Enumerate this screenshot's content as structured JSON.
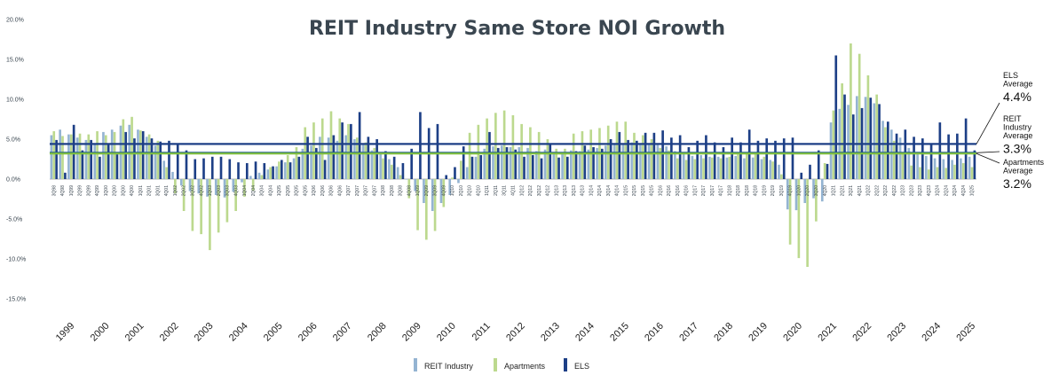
{
  "title": "REIT Industry Same Store NOI Growth",
  "colors": {
    "reit": "#94b4d2",
    "apartments": "#bcd98e",
    "els": "#1d3f86",
    "gridline": "#d8d8d8"
  },
  "legend": [
    "REIT Industry",
    "Apartments",
    "ELS"
  ],
  "annotations": [
    {
      "label_lines": [
        "ELS",
        "Average"
      ],
      "value": "4.4%",
      "level": 4.4,
      "color": "#1d3f86"
    },
    {
      "label_lines": [
        "REIT",
        "Industry",
        "Average"
      ],
      "value": "3.3%",
      "level": 3.3,
      "color": "#1f5b8c"
    },
    {
      "label_lines": [
        "Apartments",
        "Average"
      ],
      "value": "3.2%",
      "level": 3.2,
      "color": "#7fbf3f"
    }
  ],
  "chart_data": {
    "type": "bar",
    "title": "REIT Industry Same Store NOI Growth",
    "xlabel": "",
    "ylabel": "",
    "ylim": [
      -15,
      20
    ],
    "yticks": [
      "20.0%",
      "15.0%",
      "10.0%",
      "5.0%",
      "0.0%",
      "-5.0%",
      "-10.0%",
      "-15.0%"
    ],
    "ytick_values": [
      20,
      15,
      10,
      5,
      0,
      -5,
      -10,
      -15
    ],
    "categories": [
      "3Q98",
      "4Q98",
      "1Q99",
      "2Q99",
      "3Q99",
      "4Q99",
      "1Q00",
      "2Q00",
      "3Q00",
      "4Q00",
      "1Q01",
      "2Q01",
      "3Q01",
      "4Q01",
      "1Q02",
      "2Q02",
      "3Q02",
      "4Q02",
      "1Q03",
      "2Q03",
      "3Q03",
      "4Q03",
      "1Q04",
      "2Q04",
      "3Q04",
      "4Q04",
      "1Q05",
      "2Q05",
      "3Q05",
      "4Q05",
      "1Q06",
      "2Q06",
      "3Q06",
      "4Q06",
      "1Q07",
      "2Q07",
      "3Q07",
      "4Q07",
      "1Q08",
      "2Q08",
      "3Q08",
      "4Q08",
      "1Q09",
      "2Q09",
      "3Q09",
      "4Q09",
      "1Q10",
      "2Q10",
      "3Q10",
      "4Q10",
      "1Q11",
      "2Q11",
      "3Q11",
      "4Q11",
      "1Q12",
      "2Q12",
      "3Q12",
      "4Q12",
      "1Q13",
      "2Q13",
      "3Q13",
      "4Q13",
      "1Q14",
      "2Q14",
      "3Q14",
      "4Q14",
      "1Q15",
      "2Q15",
      "3Q15",
      "4Q15",
      "1Q16",
      "2Q16",
      "3Q16",
      "4Q16",
      "1Q17",
      "2Q17",
      "3Q17",
      "4Q17",
      "1Q18",
      "2Q18",
      "3Q18",
      "4Q18",
      "1Q19",
      "2Q19",
      "3Q19",
      "4Q19",
      "1Q20",
      "2Q20",
      "3Q20",
      "4Q20",
      "1Q21",
      "2Q21",
      "3Q21",
      "4Q21",
      "1Q22",
      "2Q22",
      "3Q22",
      "4Q22",
      "1Q23",
      "2Q23",
      "3Q23",
      "4Q23",
      "1Q24",
      "2Q24",
      "3Q24",
      "4Q24",
      "1Q25"
    ],
    "years": [
      "1999",
      "2000",
      "2001",
      "2002",
      "2003",
      "2004",
      "2005",
      "2006",
      "2007",
      "2008",
      "2009",
      "2010",
      "2011",
      "2012",
      "2013",
      "2014",
      "2015",
      "2016",
      "2017",
      "2018",
      "2019",
      "2020",
      "2021",
      "2022",
      "2023",
      "2024",
      "2025"
    ],
    "series": [
      {
        "name": "REIT Industry",
        "values": [
          5.5,
          6.2,
          5.6,
          5.2,
          4.9,
          4.3,
          5.9,
          6.2,
          6.7,
          6.8,
          6.2,
          5.3,
          4.2,
          2.3,
          0.9,
          -0.8,
          -1.5,
          -1.8,
          -2.2,
          -2.0,
          -2.3,
          -1.6,
          -0.4,
          0.4,
          0.8,
          1.2,
          1.6,
          2.1,
          2.6,
          3.8,
          4.2,
          5.3,
          5.2,
          4.8,
          5.5,
          5.0,
          4.4,
          3.6,
          3.2,
          2.5,
          1.5,
          0.0,
          -1.5,
          -3.0,
          -4.0,
          -3.0,
          -2.0,
          -0.5,
          1.5,
          2.8,
          3.8,
          4.1,
          4.2,
          4.0,
          4.0,
          3.9,
          3.5,
          3.7,
          3.4,
          3.3,
          3.6,
          3.5,
          3.7,
          3.9,
          4.2,
          4.4,
          4.5,
          4.6,
          4.5,
          4.5,
          4.3,
          4.1,
          3.5,
          3.3,
          2.9,
          3.0,
          2.8,
          2.8,
          2.7,
          2.9,
          2.6,
          2.7,
          2.5,
          2.4,
          1.8,
          -3.8,
          -3.9,
          -3.0,
          -2.4,
          -2.8,
          7.1,
          8.8,
          9.3,
          10.4,
          10.3,
          9.5,
          7.3,
          6.2,
          5.2,
          3.9,
          3.1,
          2.9,
          2.6,
          2.5,
          2.4,
          2.6,
          2.8
        ]
      },
      {
        "name": "Apartments",
        "values": [
          6.0,
          5.4,
          5.6,
          5.7,
          5.6,
          6.0,
          5.5,
          5.9,
          7.5,
          7.8,
          6.1,
          5.6,
          4.8,
          1.5,
          -1.8,
          -4.0,
          -6.5,
          -6.9,
          -8.9,
          -6.7,
          -5.4,
          -4.0,
          -2.2,
          -1.5,
          0.5,
          1.5,
          2.2,
          3.0,
          4.0,
          6.5,
          7.1,
          7.6,
          8.5,
          7.6,
          6.9,
          5.2,
          4.6,
          3.9,
          2.6,
          1.8,
          0.5,
          -2.4,
          -6.4,
          -7.6,
          -6.5,
          -3.5,
          0.2,
          2.3,
          5.8,
          6.8,
          7.6,
          8.3,
          8.6,
          8.0,
          6.9,
          6.5,
          5.9,
          5.0,
          3.8,
          3.8,
          5.7,
          6.0,
          6.2,
          6.4,
          6.7,
          7.2,
          7.2,
          5.8,
          5.5,
          5.0,
          3.9,
          3.6,
          2.6,
          2.4,
          2.5,
          2.6,
          2.7,
          2.6,
          2.8,
          3.1,
          3.3,
          3.2,
          2.8,
          2.2,
          0.6,
          -8.2,
          -9.9,
          -11.0,
          -5.3,
          2.0,
          8.6,
          12.0,
          17.0,
          15.7,
          13.0,
          10.6,
          6.5,
          4.8,
          3.3,
          1.7,
          1.5,
          1.2,
          1.5,
          1.4,
          1.8,
          2.0,
          1.5
        ]
      },
      {
        "name": "ELS",
        "values": [
          4.9,
          0.8,
          6.8,
          3.6,
          4.9,
          2.8,
          4.5,
          3.1,
          5.9,
          5.1,
          6.0,
          5.1,
          4.7,
          4.8,
          4.5,
          3.6,
          2.5,
          2.6,
          2.8,
          2.8,
          2.5,
          2.1,
          2.0,
          2.2,
          2.0,
          1.6,
          2.4,
          2.1,
          2.8,
          5.3,
          3.9,
          2.4,
          5.5,
          7.1,
          6.9,
          8.4,
          5.3,
          5.0,
          3.5,
          2.8,
          2.0,
          3.8,
          8.4,
          6.4,
          6.9,
          0.5,
          1.5,
          4.1,
          2.8,
          3.0,
          5.9,
          3.9,
          4.0,
          3.7,
          2.8,
          3.0,
          2.6,
          4.5,
          2.7,
          2.8,
          3.5,
          4.2,
          4.0,
          3.8,
          5.0,
          5.9,
          4.9,
          4.8,
          5.8,
          5.8,
          6.1,
          5.2,
          5.5,
          4.0,
          4.8,
          5.5,
          4.6,
          4.0,
          5.2,
          4.6,
          6.2,
          4.8,
          5.1,
          4.8,
          5.1,
          5.2,
          0.8,
          1.8,
          3.6,
          1.9,
          15.5,
          10.6,
          8.1,
          8.9,
          10.2,
          9.4,
          7.2,
          5.7,
          6.2,
          5.3,
          5.1,
          4.5,
          7.1,
          5.6,
          5.7,
          7.6,
          3.6
        ]
      }
    ],
    "reference_lines": [
      {
        "name": "ELS Average",
        "value": 4.4
      },
      {
        "name": "REIT Industry Average",
        "value": 3.3
      },
      {
        "name": "Apartments Average",
        "value": 3.2
      }
    ],
    "grid": true,
    "legend_position": "bottom"
  }
}
